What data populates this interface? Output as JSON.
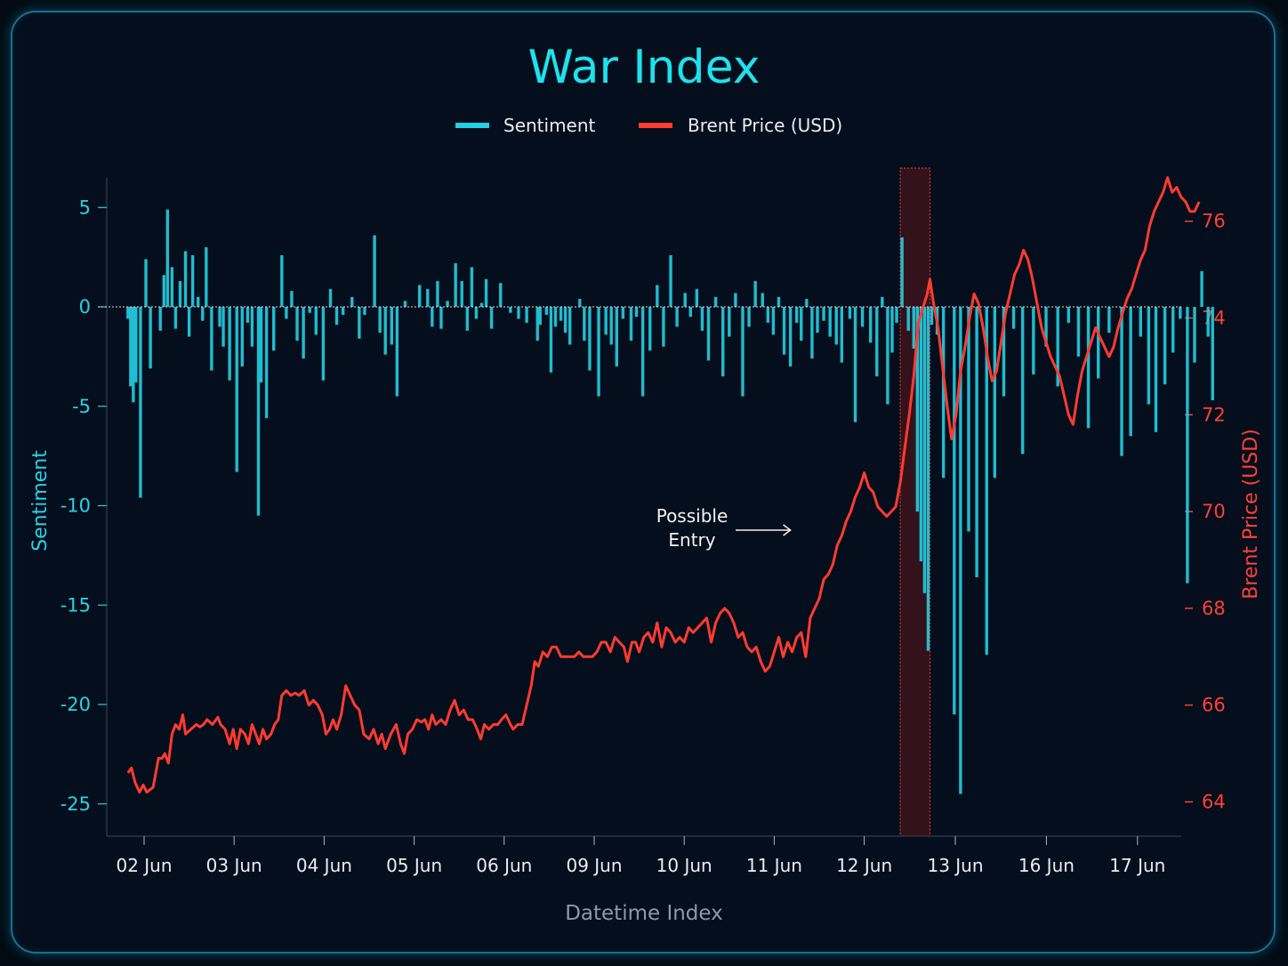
{
  "chart_data": {
    "type": "bar+line",
    "title": "War Index",
    "xlabel": "Datetime Index",
    "ylabel_left": "Sentiment",
    "ylabel_right": "Brent Price (USD)",
    "legend": [
      "Sentiment",
      "Brent Price (USD)"
    ],
    "legend_position": "top-center",
    "grid": false,
    "colors": {
      "sentiment": "#22cfe3",
      "brent": "#ff3b30",
      "title": "#1de2ee",
      "highlight": "#8b1a1a",
      "background": "#050e1c"
    },
    "x_ticks": [
      "02 Jun",
      "03 Jun",
      "04 Jun",
      "05 Jun",
      "06 Jun",
      "09 Jun",
      "10 Jun",
      "11 Jun",
      "12 Jun",
      "13 Jun",
      "16 Jun",
      "17 Jun"
    ],
    "x_range": [
      0.0,
      12.0
    ],
    "y_left": {
      "ticks": [
        5,
        0,
        -5,
        -10,
        -15,
        -20,
        -25
      ],
      "ylim": [
        -26.5,
        7
      ]
    },
    "y_right": {
      "ticks": [
        76,
        74,
        72,
        70,
        68,
        66,
        64
      ],
      "ylim": [
        63.2,
        77.6
      ]
    },
    "annotation": {
      "text_line1": "Possible",
      "text_line2": "Entry",
      "arrow_points_to_x": 7.18
    },
    "highlight_region": {
      "x_start": 8.4,
      "x_end": 8.73
    },
    "sentiment_series": [
      [
        -0.18,
        -0.6
      ],
      [
        -0.15,
        -4.0
      ],
      [
        -0.12,
        -4.8
      ],
      [
        -0.09,
        -3.8
      ],
      [
        -0.04,
        -9.6
      ],
      [
        0.02,
        2.4
      ],
      [
        0.07,
        -3.1
      ],
      [
        0.18,
        -1.2
      ],
      [
        0.22,
        1.6
      ],
      [
        0.26,
        4.9
      ],
      [
        0.31,
        2.0
      ],
      [
        0.35,
        -1.1
      ],
      [
        0.4,
        1.3
      ],
      [
        0.46,
        2.8
      ],
      [
        0.5,
        -1.5
      ],
      [
        0.54,
        2.6
      ],
      [
        0.6,
        0.5
      ],
      [
        0.65,
        -0.7
      ],
      [
        0.69,
        3.0
      ],
      [
        0.75,
        -3.2
      ],
      [
        0.84,
        -1.0
      ],
      [
        0.88,
        -2.0
      ],
      [
        0.95,
        -3.7
      ],
      [
        1.03,
        -8.3
      ],
      [
        1.09,
        -3.0
      ],
      [
        1.15,
        -0.8
      ],
      [
        1.2,
        -2.0
      ],
      [
        1.27,
        -10.5
      ],
      [
        1.3,
        -3.8
      ],
      [
        1.36,
        -5.6
      ],
      [
        1.44,
        -2.2
      ],
      [
        1.53,
        2.6
      ],
      [
        1.58,
        -0.6
      ],
      [
        1.64,
        0.8
      ],
      [
        1.7,
        -1.7
      ],
      [
        1.77,
        -2.6
      ],
      [
        1.84,
        -0.3
      ],
      [
        1.91,
        -1.4
      ],
      [
        1.99,
        -3.7
      ],
      [
        2.07,
        0.9
      ],
      [
        2.14,
        -0.9
      ],
      [
        2.21,
        -0.4
      ],
      [
        2.31,
        0.5
      ],
      [
        2.39,
        -1.6
      ],
      [
        2.45,
        -0.4
      ],
      [
        2.56,
        3.6
      ],
      [
        2.62,
        -1.3
      ],
      [
        2.68,
        -2.4
      ],
      [
        2.75,
        -1.9
      ],
      [
        2.81,
        -4.5
      ],
      [
        2.9,
        0.3
      ],
      [
        3.06,
        1.1
      ],
      [
        3.15,
        0.9
      ],
      [
        3.2,
        -1.0
      ],
      [
        3.26,
        1.3
      ],
      [
        3.3,
        -1.1
      ],
      [
        3.37,
        0.3
      ],
      [
        3.46,
        2.2
      ],
      [
        3.53,
        1.3
      ],
      [
        3.59,
        -1.2
      ],
      [
        3.64,
        2.0
      ],
      [
        3.69,
        -0.6
      ],
      [
        3.75,
        0.2
      ],
      [
        3.8,
        1.4
      ],
      [
        3.86,
        -1.1
      ],
      [
        3.96,
        1.2
      ],
      [
        4.07,
        -0.3
      ],
      [
        4.16,
        -0.6
      ],
      [
        4.25,
        -0.8
      ],
      [
        4.37,
        -1.7
      ],
      [
        4.4,
        -0.9
      ],
      [
        4.47,
        -0.4
      ],
      [
        4.52,
        -3.3
      ],
      [
        4.57,
        -1.0
      ],
      [
        4.63,
        -0.7
      ],
      [
        4.68,
        -1.3
      ],
      [
        4.73,
        -1.9
      ],
      [
        4.84,
        0.4
      ],
      [
        4.89,
        -1.7
      ],
      [
        4.95,
        -3.2
      ],
      [
        5.05,
        -4.5
      ],
      [
        5.13,
        -1.4
      ],
      [
        5.19,
        -1.9
      ],
      [
        5.25,
        -3.0
      ],
      [
        5.32,
        -0.6
      ],
      [
        5.41,
        -1.7
      ],
      [
        5.47,
        -0.5
      ],
      [
        5.54,
        -4.5
      ],
      [
        5.62,
        -2.2
      ],
      [
        5.7,
        1.1
      ],
      [
        5.77,
        -2.0
      ],
      [
        5.85,
        2.6
      ],
      [
        5.92,
        -1.0
      ],
      [
        6.01,
        0.7
      ],
      [
        6.07,
        -0.5
      ],
      [
        6.14,
        0.9
      ],
      [
        6.2,
        -1.2
      ],
      [
        6.27,
        -2.7
      ],
      [
        6.35,
        0.5
      ],
      [
        6.43,
        -3.5
      ],
      [
        6.5,
        -1.5
      ],
      [
        6.57,
        0.7
      ],
      [
        6.65,
        -4.5
      ],
      [
        6.72,
        -1.0
      ],
      [
        6.79,
        1.3
      ],
      [
        6.87,
        0.7
      ],
      [
        6.93,
        -0.8
      ],
      [
        6.99,
        -1.4
      ],
      [
        7.05,
        0.5
      ],
      [
        7.11,
        -2.4
      ],
      [
        7.18,
        -3.0
      ],
      [
        7.25,
        -0.8
      ],
      [
        7.3,
        -1.7
      ],
      [
        7.36,
        0.4
      ],
      [
        7.42,
        -2.6
      ],
      [
        7.48,
        -1.3
      ],
      [
        7.55,
        -0.7
      ],
      [
        7.62,
        -1.5
      ],
      [
        7.69,
        -1.9
      ],
      [
        7.75,
        -2.8
      ],
      [
        7.84,
        -0.6
      ],
      [
        7.9,
        -5.8
      ],
      [
        7.98,
        -1.0
      ],
      [
        8.07,
        -1.8
      ],
      [
        8.14,
        -3.5
      ],
      [
        8.2,
        0.5
      ],
      [
        8.26,
        -4.9
      ],
      [
        8.31,
        -2.3
      ],
      [
        8.36,
        -0.8
      ],
      [
        8.42,
        3.5
      ],
      [
        8.49,
        -1.2
      ],
      [
        8.55,
        -2.1
      ],
      [
        8.59,
        -10.3
      ],
      [
        8.63,
        -12.8
      ],
      [
        8.67,
        -14.4
      ],
      [
        8.71,
        -17.3
      ],
      [
        8.75,
        -0.9
      ],
      [
        8.81,
        -1.4
      ],
      [
        8.88,
        -8.6
      ],
      [
        9.0,
        -20.5
      ],
      [
        9.07,
        -24.5
      ],
      [
        9.16,
        -11.3
      ],
      [
        9.25,
        -13.6
      ],
      [
        9.36,
        -17.5
      ],
      [
        9.45,
        -8.6
      ],
      [
        9.55,
        -4.5
      ],
      [
        9.66,
        -1.1
      ],
      [
        9.76,
        -7.4
      ],
      [
        9.88,
        -3.4
      ],
      [
        10.02,
        -2.0
      ],
      [
        10.15,
        -4.0
      ],
      [
        10.27,
        -0.8
      ],
      [
        10.38,
        -2.5
      ],
      [
        10.49,
        -6.1
      ],
      [
        10.6,
        -3.6
      ],
      [
        10.72,
        -1.3
      ],
      [
        10.86,
        -7.5
      ],
      [
        10.96,
        -6.5
      ],
      [
        11.07,
        -1.5
      ],
      [
        11.16,
        -4.9
      ],
      [
        11.24,
        -6.3
      ],
      [
        11.34,
        -3.9
      ],
      [
        11.43,
        -2.3
      ],
      [
        11.51,
        -0.6
      ],
      [
        11.59,
        -13.9
      ],
      [
        11.67,
        -2.8
      ],
      [
        11.75,
        1.8
      ],
      [
        11.82,
        -1.5
      ],
      [
        11.87,
        -4.7
      ]
    ],
    "brent_series": [
      [
        -0.18,
        64.6
      ],
      [
        -0.14,
        64.7
      ],
      [
        -0.1,
        64.4
      ],
      [
        -0.05,
        64.2
      ],
      [
        -0.01,
        64.35
      ],
      [
        0.03,
        64.2
      ],
      [
        0.1,
        64.3
      ],
      [
        0.16,
        64.9
      ],
      [
        0.2,
        64.9
      ],
      [
        0.23,
        65.0
      ],
      [
        0.27,
        64.8
      ],
      [
        0.31,
        65.4
      ],
      [
        0.35,
        65.6
      ],
      [
        0.39,
        65.5
      ],
      [
        0.43,
        65.8
      ],
      [
        0.46,
        65.4
      ],
      [
        0.52,
        65.5
      ],
      [
        0.58,
        65.6
      ],
      [
        0.62,
        65.55
      ],
      [
        0.66,
        65.6
      ],
      [
        0.7,
        65.7
      ],
      [
        0.76,
        65.6
      ],
      [
        0.82,
        65.75
      ],
      [
        0.85,
        65.6
      ],
      [
        0.9,
        65.5
      ],
      [
        0.95,
        65.2
      ],
      [
        0.99,
        65.5
      ],
      [
        1.03,
        65.1
      ],
      [
        1.07,
        65.5
      ],
      [
        1.12,
        65.4
      ],
      [
        1.16,
        65.2
      ],
      [
        1.2,
        65.6
      ],
      [
        1.24,
        65.4
      ],
      [
        1.28,
        65.2
      ],
      [
        1.32,
        65.5
      ],
      [
        1.36,
        65.3
      ],
      [
        1.41,
        65.4
      ],
      [
        1.45,
        65.6
      ],
      [
        1.49,
        65.7
      ],
      [
        1.53,
        66.2
      ],
      [
        1.58,
        66.3
      ],
      [
        1.63,
        66.2
      ],
      [
        1.68,
        66.25
      ],
      [
        1.72,
        66.2
      ],
      [
        1.78,
        66.3
      ],
      [
        1.83,
        66.0
      ],
      [
        1.88,
        66.1
      ],
      [
        1.93,
        66.0
      ],
      [
        1.98,
        65.8
      ],
      [
        2.02,
        65.4
      ],
      [
        2.06,
        65.5
      ],
      [
        2.1,
        65.7
      ],
      [
        2.14,
        65.5
      ],
      [
        2.19,
        65.8
      ],
      [
        2.24,
        66.4
      ],
      [
        2.29,
        66.2
      ],
      [
        2.34,
        66.0
      ],
      [
        2.39,
        65.9
      ],
      [
        2.44,
        65.4
      ],
      [
        2.5,
        65.3
      ],
      [
        2.55,
        65.5
      ],
      [
        2.6,
        65.2
      ],
      [
        2.64,
        65.4
      ],
      [
        2.68,
        65.1
      ],
      [
        2.74,
        65.4
      ],
      [
        2.8,
        65.6
      ],
      [
        2.85,
        65.2
      ],
      [
        2.89,
        65.0
      ],
      [
        2.93,
        65.4
      ],
      [
        2.98,
        65.5
      ],
      [
        3.03,
        65.7
      ],
      [
        3.08,
        65.65
      ],
      [
        3.12,
        65.7
      ],
      [
        3.16,
        65.5
      ],
      [
        3.2,
        65.8
      ],
      [
        3.24,
        65.6
      ],
      [
        3.3,
        65.7
      ],
      [
        3.35,
        65.6
      ],
      [
        3.4,
        65.9
      ],
      [
        3.45,
        66.1
      ],
      [
        3.5,
        65.8
      ],
      [
        3.55,
        65.9
      ],
      [
        3.6,
        65.7
      ],
      [
        3.65,
        65.7
      ],
      [
        3.7,
        65.5
      ],
      [
        3.74,
        65.3
      ],
      [
        3.78,
        65.6
      ],
      [
        3.83,
        65.5
      ],
      [
        3.88,
        65.6
      ],
      [
        3.93,
        65.6
      ],
      [
        3.97,
        65.7
      ],
      [
        4.02,
        65.8
      ],
      [
        4.07,
        65.6
      ],
      [
        4.1,
        65.5
      ],
      [
        4.15,
        65.6
      ],
      [
        4.2,
        65.6
      ],
      [
        4.25,
        66.0
      ],
      [
        4.3,
        66.4
      ],
      [
        4.34,
        66.9
      ],
      [
        4.38,
        66.8
      ],
      [
        4.43,
        67.1
      ],
      [
        4.48,
        67.0
      ],
      [
        4.53,
        67.2
      ],
      [
        4.58,
        67.2
      ],
      [
        4.63,
        67.0
      ],
      [
        4.68,
        67.0
      ],
      [
        4.73,
        67.0
      ],
      [
        4.78,
        67.0
      ],
      [
        4.83,
        67.1
      ],
      [
        4.88,
        67.0
      ],
      [
        4.93,
        67.0
      ],
      [
        4.98,
        67.0
      ],
      [
        5.03,
        67.1
      ],
      [
        5.08,
        67.3
      ],
      [
        5.13,
        67.3
      ],
      [
        5.18,
        67.1
      ],
      [
        5.23,
        67.4
      ],
      [
        5.28,
        67.3
      ],
      [
        5.33,
        67.2
      ],
      [
        5.37,
        66.9
      ],
      [
        5.42,
        67.3
      ],
      [
        5.46,
        67.3
      ],
      [
        5.5,
        67.1
      ],
      [
        5.55,
        67.4
      ],
      [
        5.6,
        67.5
      ],
      [
        5.65,
        67.3
      ],
      [
        5.7,
        67.7
      ],
      [
        5.75,
        67.2
      ],
      [
        5.8,
        67.6
      ],
      [
        5.85,
        67.5
      ],
      [
        5.9,
        67.3
      ],
      [
        5.95,
        67.4
      ],
      [
        6.0,
        67.3
      ],
      [
        6.05,
        67.6
      ],
      [
        6.1,
        67.5
      ],
      [
        6.15,
        67.6
      ],
      [
        6.2,
        67.7
      ],
      [
        6.25,
        67.8
      ],
      [
        6.3,
        67.3
      ],
      [
        6.35,
        67.7
      ],
      [
        6.4,
        67.9
      ],
      [
        6.45,
        68.0
      ],
      [
        6.5,
        67.9
      ],
      [
        6.55,
        67.7
      ],
      [
        6.6,
        67.4
      ],
      [
        6.65,
        67.5
      ],
      [
        6.7,
        67.2
      ],
      [
        6.75,
        67.1
      ],
      [
        6.8,
        67.2
      ],
      [
        6.85,
        66.9
      ],
      [
        6.9,
        66.7
      ],
      [
        6.95,
        66.8
      ],
      [
        7.0,
        67.1
      ],
      [
        7.05,
        67.4
      ],
      [
        7.1,
        67.0
      ],
      [
        7.15,
        67.3
      ],
      [
        7.2,
        67.1
      ],
      [
        7.25,
        67.4
      ],
      [
        7.3,
        67.5
      ],
      [
        7.35,
        67.0
      ],
      [
        7.4,
        67.8
      ],
      [
        7.45,
        68.0
      ],
      [
        7.5,
        68.2
      ],
      [
        7.55,
        68.6
      ],
      [
        7.6,
        68.7
      ],
      [
        7.65,
        68.9
      ],
      [
        7.7,
        69.3
      ],
      [
        7.75,
        69.5
      ],
      [
        7.8,
        69.8
      ],
      [
        7.85,
        70.0
      ],
      [
        7.9,
        70.3
      ],
      [
        7.95,
        70.5
      ],
      [
        8.0,
        70.8
      ],
      [
        8.05,
        70.5
      ],
      [
        8.1,
        70.4
      ],
      [
        8.15,
        70.1
      ],
      [
        8.2,
        70.0
      ],
      [
        8.25,
        69.9
      ],
      [
        8.3,
        70.0
      ],
      [
        8.35,
        70.1
      ],
      [
        8.4,
        70.6
      ],
      [
        8.45,
        71.3
      ],
      [
        8.5,
        72.0
      ],
      [
        8.55,
        72.8
      ],
      [
        8.6,
        73.9
      ],
      [
        8.65,
        74.2
      ],
      [
        8.7,
        74.5
      ],
      [
        8.73,
        74.8
      ],
      [
        8.77,
        74.3
      ],
      [
        8.82,
        73.8
      ],
      [
        8.87,
        73.0
      ],
      [
        8.92,
        72.2
      ],
      [
        8.97,
        71.5
      ],
      [
        9.02,
        72.0
      ],
      [
        9.07,
        72.9
      ],
      [
        9.12,
        73.4
      ],
      [
        9.17,
        74.0
      ],
      [
        9.22,
        74.5
      ],
      [
        9.27,
        74.3
      ],
      [
        9.32,
        73.8
      ],
      [
        9.37,
        73.2
      ],
      [
        9.42,
        72.7
      ],
      [
        9.47,
        72.9
      ],
      [
        9.52,
        73.5
      ],
      [
        9.57,
        74.1
      ],
      [
        9.62,
        74.5
      ],
      [
        9.67,
        74.9
      ],
      [
        9.72,
        75.1
      ],
      [
        9.77,
        75.4
      ],
      [
        9.82,
        75.2
      ],
      [
        9.87,
        74.8
      ],
      [
        9.92,
        74.3
      ],
      [
        9.97,
        73.8
      ],
      [
        10.02,
        73.5
      ],
      [
        10.07,
        73.2
      ],
      [
        10.12,
        73.0
      ],
      [
        10.17,
        72.8
      ],
      [
        10.22,
        72.4
      ],
      [
        10.27,
        72.0
      ],
      [
        10.32,
        71.8
      ],
      [
        10.37,
        72.4
      ],
      [
        10.42,
        72.9
      ],
      [
        10.47,
        73.2
      ],
      [
        10.52,
        73.5
      ],
      [
        10.57,
        73.8
      ],
      [
        10.62,
        73.6
      ],
      [
        10.67,
        73.4
      ],
      [
        10.72,
        73.2
      ],
      [
        10.77,
        73.4
      ],
      [
        10.82,
        73.8
      ],
      [
        10.87,
        74.1
      ],
      [
        10.92,
        74.4
      ],
      [
        10.97,
        74.6
      ],
      [
        11.02,
        74.9
      ],
      [
        11.07,
        75.2
      ],
      [
        11.12,
        75.4
      ],
      [
        11.17,
        75.9
      ],
      [
        11.22,
        76.2
      ],
      [
        11.27,
        76.4
      ],
      [
        11.32,
        76.6
      ],
      [
        11.37,
        76.9
      ],
      [
        11.42,
        76.6
      ],
      [
        11.47,
        76.7
      ],
      [
        11.52,
        76.5
      ],
      [
        11.57,
        76.4
      ],
      [
        11.62,
        76.2
      ],
      [
        11.67,
        76.2
      ],
      [
        11.72,
        76.4
      ]
    ]
  }
}
